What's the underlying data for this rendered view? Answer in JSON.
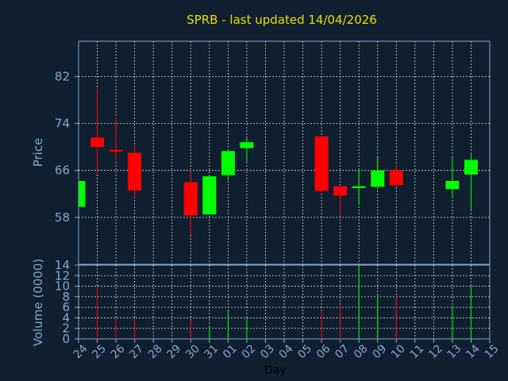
{
  "chart_data": [
    {
      "type": "candlestick",
      "title": "SPRB - last updated 14/04/2026",
      "ylabel": "Price",
      "ylim": [
        50,
        88
      ],
      "yticks": [
        58,
        66,
        74,
        82
      ],
      "grid": true,
      "up_color": "#00ff00",
      "down_color": "#ff0000",
      "series": [
        {
          "x": "24",
          "open": 59.8,
          "high": 64.2,
          "low": 59.8,
          "close": 64.2
        },
        {
          "x": "25",
          "open": 71.6,
          "high": 80.0,
          "low": 65.5,
          "close": 70.0
        },
        {
          "x": "26",
          "open": 69.5,
          "high": 75.0,
          "low": 67.6,
          "close": 69.3
        },
        {
          "x": "27",
          "open": 69.0,
          "high": 70.3,
          "low": 61.3,
          "close": 62.6
        },
        {
          "x": "30",
          "open": 64.0,
          "high": 66.2,
          "low": 55.0,
          "close": 58.3
        },
        {
          "x": "31",
          "open": 58.5,
          "high": 65.0,
          "low": 58.5,
          "close": 65.0
        },
        {
          "x": "01",
          "open": 65.2,
          "high": 69.5,
          "low": 64.3,
          "close": 69.3
        },
        {
          "x": "02",
          "open": 69.8,
          "high": 71.5,
          "low": 67.5,
          "close": 70.8
        },
        {
          "x": "06",
          "open": 71.8,
          "high": 71.8,
          "low": 62.3,
          "close": 62.5
        },
        {
          "x": "07",
          "open": 63.3,
          "high": 63.3,
          "low": 58.2,
          "close": 61.7
        },
        {
          "x": "08",
          "open": 63.0,
          "high": 66.2,
          "low": 60.3,
          "close": 63.3
        },
        {
          "x": "09",
          "open": 63.2,
          "high": 68.3,
          "low": 63.2,
          "close": 66.0
        },
        {
          "x": "10",
          "open": 66.0,
          "high": 67.0,
          "low": 63.1,
          "close": 63.5
        },
        {
          "x": "13",
          "open": 62.8,
          "high": 68.5,
          "low": 61.3,
          "close": 64.2
        },
        {
          "x": "14",
          "open": 65.3,
          "high": 69.0,
          "low": 59.2,
          "close": 67.8
        }
      ]
    },
    {
      "type": "bar",
      "ylabel": "Volume (0000)",
      "xlabel": "Day",
      "ylim": [
        0,
        14
      ],
      "yticks": [
        0,
        2,
        4,
        6,
        8,
        10,
        12,
        14
      ],
      "categories": [
        "24",
        "25",
        "26",
        "27",
        "28",
        "29",
        "30",
        "31",
        "01",
        "02",
        "03",
        "04",
        "05",
        "06",
        "07",
        "08",
        "09",
        "10",
        "11",
        "12",
        "13",
        "14",
        "15"
      ],
      "series": [
        {
          "x": "24",
          "value": 0,
          "direction": "up"
        },
        {
          "x": "25",
          "value": 10,
          "direction": "down"
        },
        {
          "x": "26",
          "value": 4,
          "direction": "down"
        },
        {
          "x": "27",
          "value": 4,
          "direction": "down"
        },
        {
          "x": "30",
          "value": 3.5,
          "direction": "down"
        },
        {
          "x": "31",
          "value": 2.5,
          "direction": "up"
        },
        {
          "x": "01",
          "value": 5.3,
          "direction": "up"
        },
        {
          "x": "02",
          "value": 4,
          "direction": "up"
        },
        {
          "x": "06",
          "value": 5.2,
          "direction": "down"
        },
        {
          "x": "07",
          "value": 6,
          "direction": "down"
        },
        {
          "x": "08",
          "value": 14,
          "direction": "up"
        },
        {
          "x": "09",
          "value": 8.5,
          "direction": "up"
        },
        {
          "x": "10",
          "value": 8,
          "direction": "down"
        },
        {
          "x": "13",
          "value": 6.2,
          "direction": "up"
        },
        {
          "x": "14",
          "value": 10,
          "direction": "up"
        }
      ]
    }
  ]
}
